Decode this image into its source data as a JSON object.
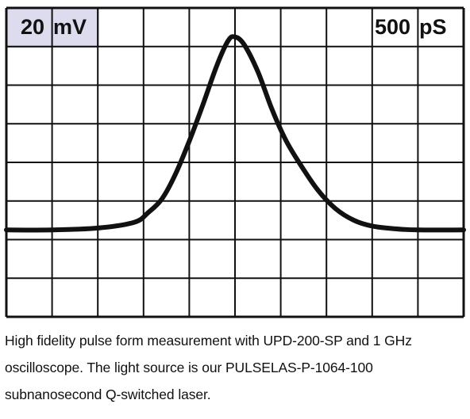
{
  "chart_data": {
    "type": "line",
    "vertical_scale": "20 mV",
    "horizontal_scale": "500 pS",
    "vertical_scale_parts": [
      "20",
      "mV"
    ],
    "horizontal_scale_parts": [
      "500",
      "pS"
    ],
    "divisions": {
      "x": 10,
      "y": 8
    },
    "grid": true,
    "series": [
      {
        "x": [
          -5.0,
          -4.0,
          -3.0,
          -2.2,
          -1.9,
          -1.6,
          -1.3,
          -1.0,
          -0.7,
          -0.4,
          -0.15,
          0.0,
          0.2,
          0.5,
          0.8,
          1.1,
          1.4,
          1.8,
          2.2,
          2.6,
          3.0,
          3.5,
          4.0,
          5.0
        ],
        "y": [
          -1.75,
          -1.75,
          -1.7,
          -1.55,
          -1.3,
          -0.95,
          -0.3,
          0.55,
          1.5,
          2.5,
          3.15,
          3.25,
          3.05,
          2.35,
          1.4,
          0.6,
          0.0,
          -0.7,
          -1.2,
          -1.5,
          -1.65,
          -1.72,
          -1.75,
          -1.75
        ]
      }
    ],
    "colors": {
      "trace": "#111111",
      "grid": "#111111",
      "scale_box": "#dcdcee",
      "background": "#ffffff"
    }
  },
  "caption": {
    "lines": [
      "High fidelity pulse form measurement with UPD-200-SP and 1 GHz",
      "oscilloscope. The light source is our PULSELAS-P-1064-100",
      "subnanosecond Q-switched laser."
    ]
  }
}
